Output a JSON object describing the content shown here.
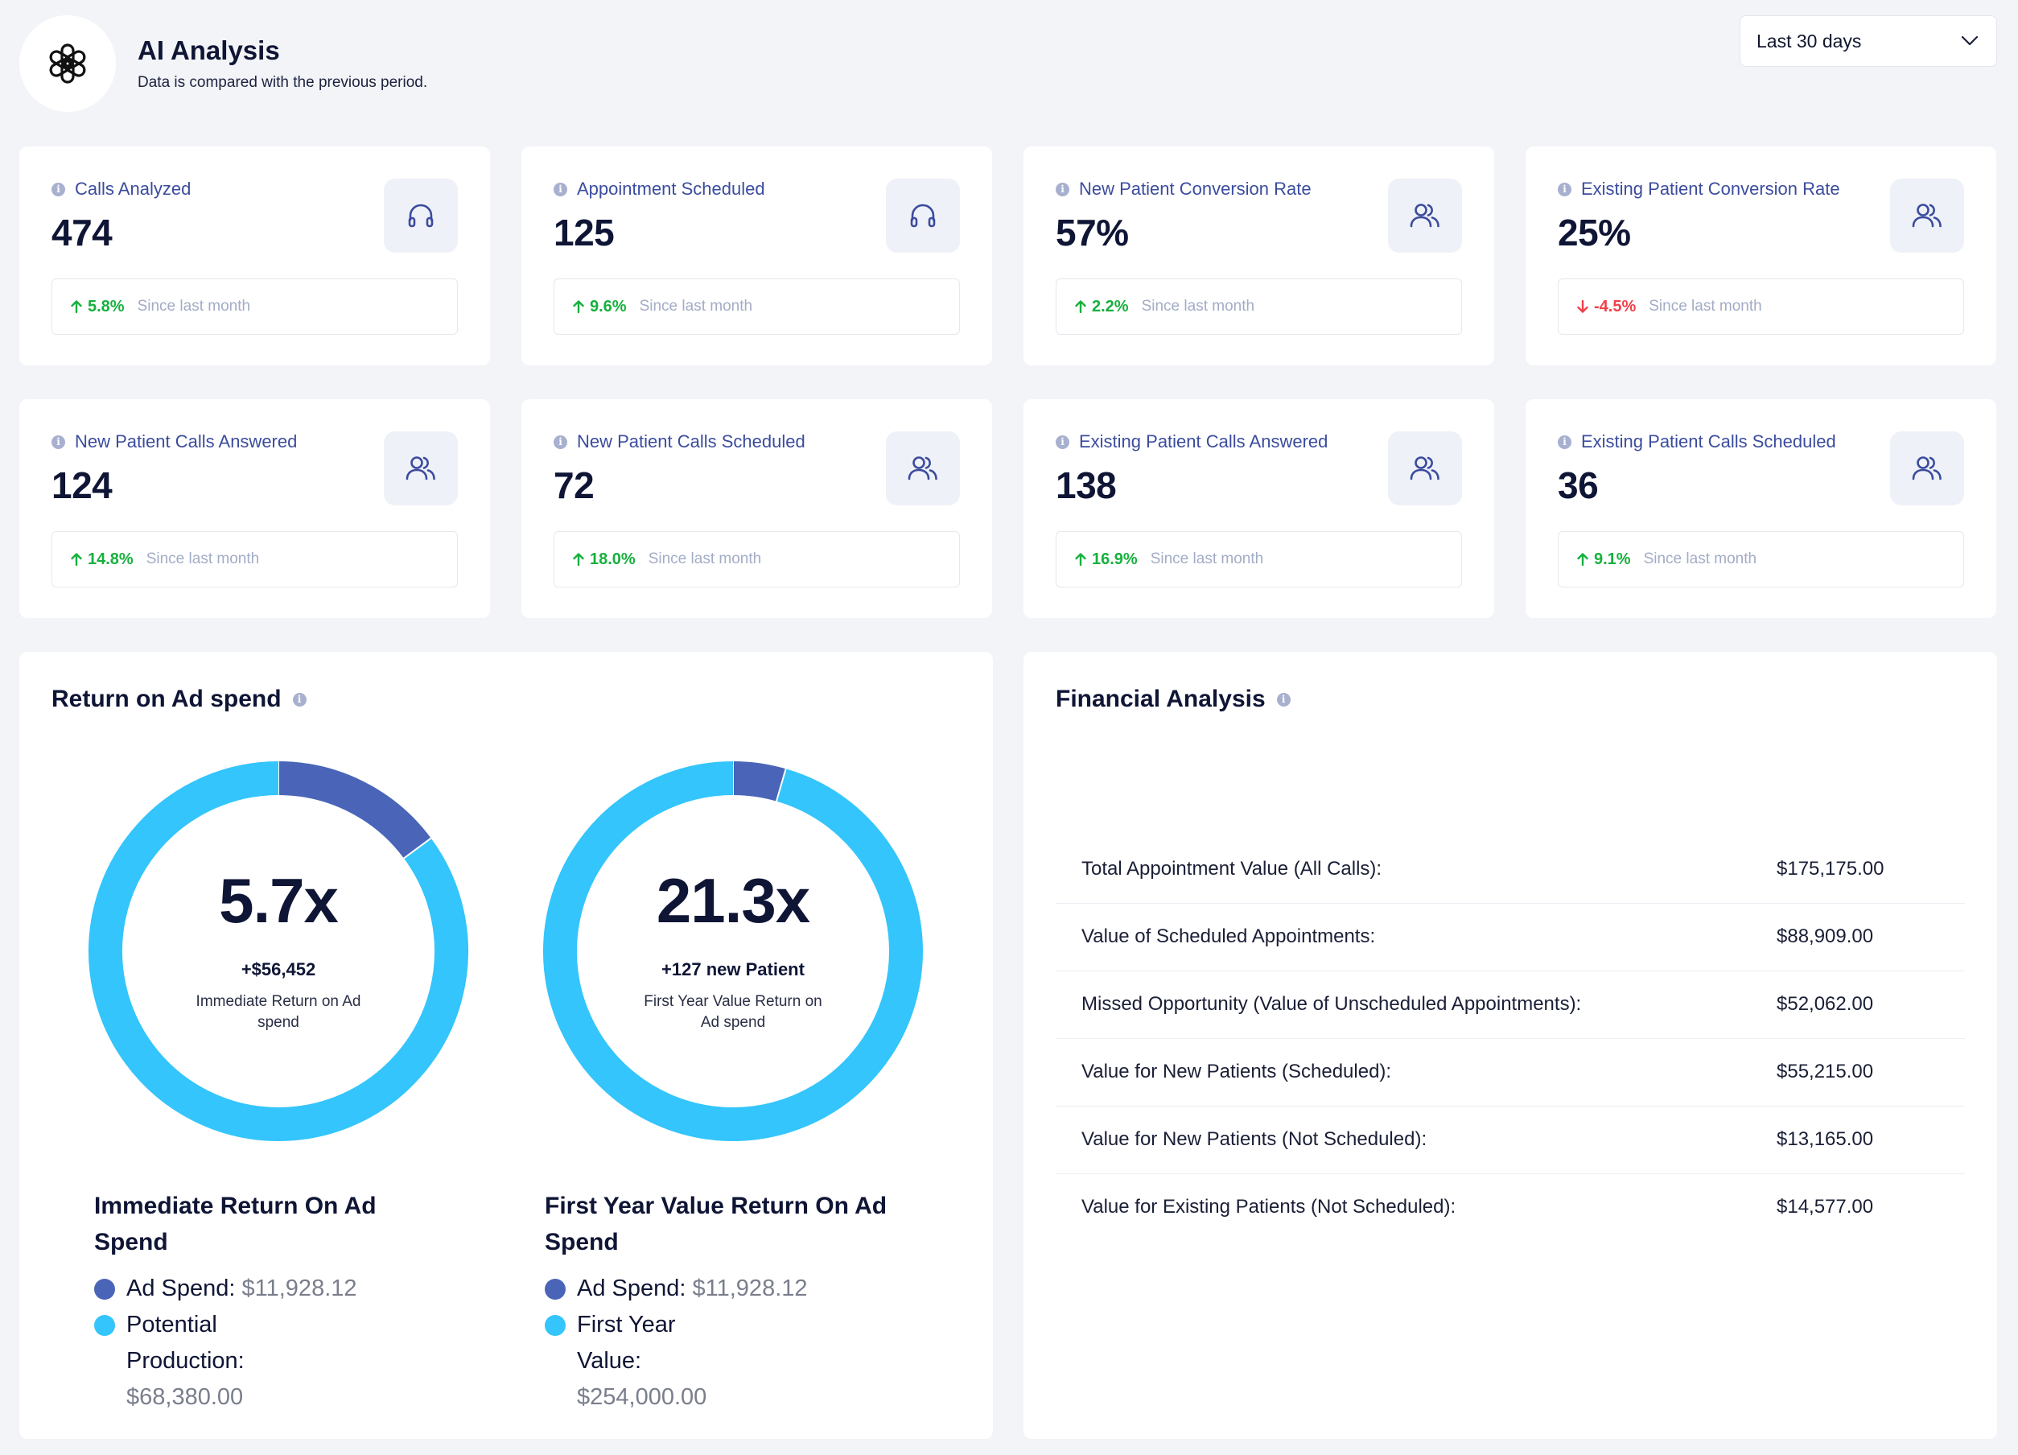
{
  "header": {
    "title": "AI Analysis",
    "subtitle": "Data is compared with the previous period.",
    "logo_icon": "openai-logo-icon",
    "period_select": {
      "value": "Last 30 days"
    }
  },
  "stats": [
    {
      "label": "Calls Analyzed",
      "value": "474",
      "icon": "headset-icon",
      "delta": "5.8%",
      "direction": "up",
      "since": "Since last month"
    },
    {
      "label": "Appointment Scheduled",
      "value": "125",
      "icon": "headset-icon",
      "delta": "9.6%",
      "direction": "up",
      "since": "Since last month"
    },
    {
      "label": "New Patient Conversion Rate",
      "value": "57%",
      "icon": "users-icon",
      "delta": "2.2%",
      "direction": "up",
      "since": "Since last month"
    },
    {
      "label": "Existing Patient Conversion Rate",
      "value": "25%",
      "icon": "users-icon",
      "delta": "-4.5%",
      "direction": "down",
      "since": "Since last month"
    },
    {
      "label": "New Patient Calls Answered",
      "value": "124",
      "icon": "users-icon",
      "delta": "14.8%",
      "direction": "up",
      "since": "Since last month"
    },
    {
      "label": "New Patient Calls Scheduled",
      "value": "72",
      "icon": "users-icon",
      "delta": "18.0%",
      "direction": "up",
      "since": "Since last month"
    },
    {
      "label": "Existing Patient Calls Answered",
      "value": "138",
      "icon": "users-icon",
      "delta": "16.9%",
      "direction": "up",
      "since": "Since last month"
    },
    {
      "label": "Existing Patient Calls Scheduled",
      "value": "36",
      "icon": "users-icon",
      "delta": "9.1%",
      "direction": "up",
      "since": "Since last month"
    }
  ],
  "roas": {
    "title": "Return on Ad spend",
    "colors": {
      "ad_spend": "#4a65b8",
      "return": "#33c5fb"
    },
    "immediate": {
      "big": "5.7x",
      "sub": "+$56,452",
      "caption": "Immediate Return on Ad spend",
      "legend_title": "Immediate Return On Ad Spend",
      "legend": [
        {
          "label": "Ad Spend:",
          "value": "$11,928.12",
          "color": "#4a65b8"
        },
        {
          "label": "Potential Production:",
          "value": "$68,380.00",
          "color": "#33c5fb"
        }
      ]
    },
    "first_year": {
      "big": "21.3x",
      "sub": "+127 new Patient",
      "caption": "First Year Value Return on Ad spend",
      "legend_title": "First Year Value Return On Ad Spend",
      "legend": [
        {
          "label": "Ad Spend:",
          "value": "$11,928.12",
          "color": "#4a65b8"
        },
        {
          "label": "First Year Value:",
          "value": "$254,000.00",
          "color": "#33c5fb"
        }
      ]
    }
  },
  "chart_data": [
    {
      "type": "pie",
      "style": "donut",
      "title": "",
      "labels": [
        "Ad Spend",
        "Potential Production"
      ],
      "values": [
        11928.12,
        68380.0
      ],
      "colors": [
        "#4a65b8",
        "#33c5fb"
      ]
    },
    {
      "type": "pie",
      "style": "donut",
      "title": "",
      "labels": [
        "Ad Spend",
        "First Year Value"
      ],
      "values": [
        11928.12,
        254000.0
      ],
      "colors": [
        "#4a65b8",
        "#33c5fb"
      ]
    }
  ],
  "financial": {
    "title": "Financial Analysis",
    "rows": [
      {
        "label": "Total Appointment Value (All Calls):",
        "value": "$175,175.00"
      },
      {
        "label": "Value of Scheduled Appointments:",
        "value": "$88,909.00"
      },
      {
        "label": "Missed Opportunity (Value of Unscheduled Appointments):",
        "value": "$52,062.00"
      },
      {
        "label": "Value for New Patients (Scheduled):",
        "value": "$55,215.00"
      },
      {
        "label": "Value for New Patients (Not Scheduled):",
        "value": "$13,165.00"
      },
      {
        "label": "Value for Existing Patients (Not Scheduled):",
        "value": "$14,577.00"
      }
    ]
  }
}
